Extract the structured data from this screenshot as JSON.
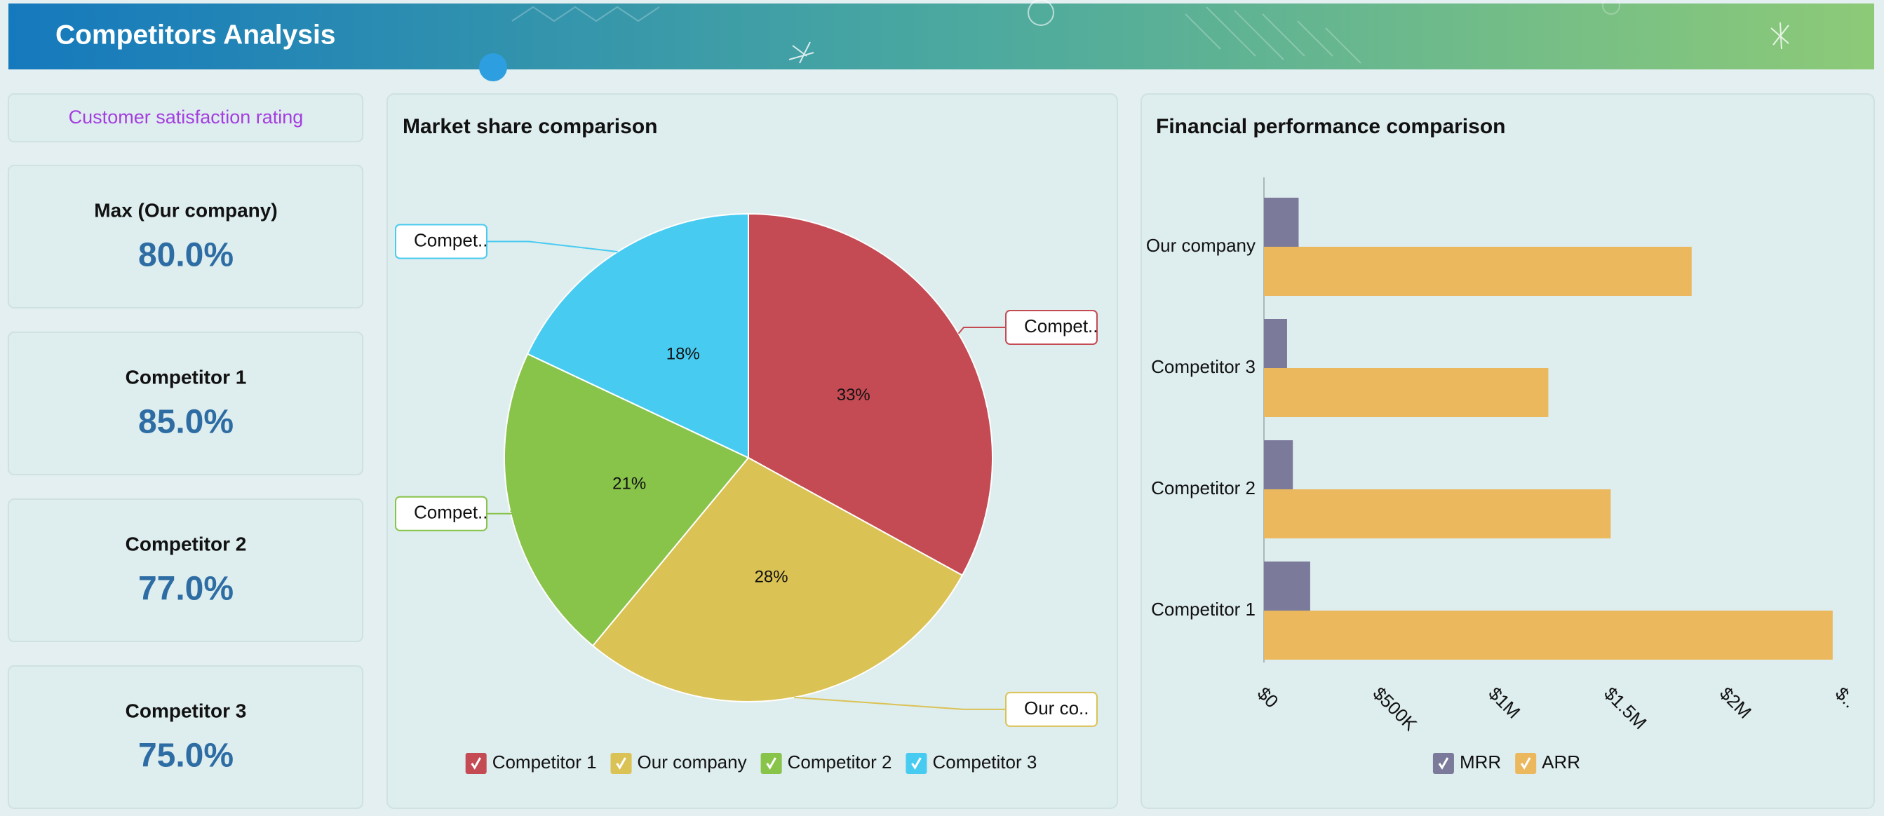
{
  "header": {
    "title": "Competitors Analysis"
  },
  "kpis": {
    "title": "Customer satisfaction rating",
    "cards": [
      {
        "label": "Max (Our company)",
        "value": "80.0%"
      },
      {
        "label": "Competitor 1",
        "value": "85.0%"
      },
      {
        "label": "Competitor 2",
        "value": "77.0%"
      },
      {
        "label": "Competitor 3",
        "value": "75.0%"
      }
    ]
  },
  "chart_data": [
    {
      "type": "pie",
      "title": "Market share comparison",
      "categories": [
        "Competitor 1",
        "Our company",
        "Competitor 2",
        "Competitor 3"
      ],
      "values": [
        33,
        28,
        21,
        18
      ],
      "value_labels": [
        "33%",
        "28%",
        "21%",
        "18%"
      ],
      "slice_labels": [
        "Compet..",
        "Our co..",
        "Compet..",
        "Compet.."
      ],
      "colors": [
        "#c44a53",
        "#dbc254",
        "#88c34a",
        "#48cbf0"
      ],
      "legend": "bottom"
    },
    {
      "type": "bar",
      "orientation": "horizontal",
      "title": "Financial performance comparison",
      "categories": [
        "Our company",
        "Competitor 3",
        "Competitor 2",
        "Competitor 1"
      ],
      "series": [
        {
          "name": "MRR",
          "color": "#7b7a9b",
          "values": [
            150000,
            100000,
            125000,
            200000
          ]
        },
        {
          "name": "ARR",
          "color": "#ebb85e",
          "values": [
            1850000,
            1230000,
            1500000,
            2460000
          ]
        }
      ],
      "xlim": [
        0,
        2500000
      ],
      "xticks": [
        {
          "value": 0,
          "label": "$0"
        },
        {
          "value": 500000,
          "label": "$500K"
        },
        {
          "value": 1000000,
          "label": "$1M"
        },
        {
          "value": 1500000,
          "label": "$1.5M"
        },
        {
          "value": 2000000,
          "label": "$2M"
        },
        {
          "value": 2500000,
          "label": "$.."
        }
      ],
      "legend": "bottom",
      "grid": false
    }
  ]
}
